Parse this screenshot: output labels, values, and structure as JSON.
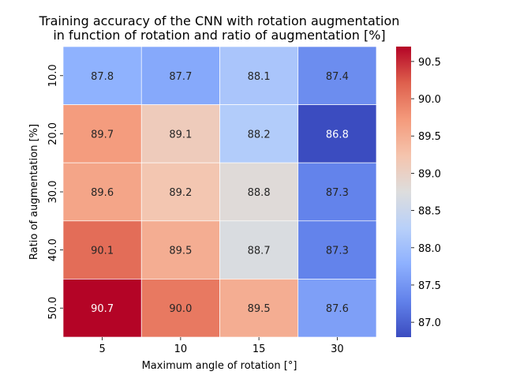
{
  "chart_data": {
    "type": "heatmap",
    "title_line1": "Training accuracy of the CNN with rotation augmentation",
    "title_line2": "in function of rotation and ratio of augmentation [%]",
    "xlabel": "Maximum angle of rotation [°]",
    "ylabel": "Ratio of augmentation [%]",
    "x_categories": [
      "5",
      "10",
      "15",
      "30"
    ],
    "y_categories": [
      "10.0",
      "20.0",
      "30.0",
      "40.0",
      "50.0"
    ],
    "values": [
      [
        87.8,
        87.7,
        88.1,
        87.4
      ],
      [
        89.7,
        89.1,
        88.2,
        86.8
      ],
      [
        89.6,
        89.2,
        88.8,
        87.3
      ],
      [
        90.1,
        89.5,
        88.7,
        87.3
      ],
      [
        90.7,
        90.0,
        89.5,
        87.6
      ]
    ],
    "colormap": "coolwarm",
    "vmin": 86.8,
    "vmax": 90.7,
    "colorbar_ticks": [
      "87.0",
      "87.5",
      "88.0",
      "88.5",
      "89.0",
      "89.5",
      "90.0",
      "90.5"
    ],
    "colors": {
      "low": "#3b4cc0",
      "mid": "#dddddd",
      "high": "#b40426"
    }
  }
}
